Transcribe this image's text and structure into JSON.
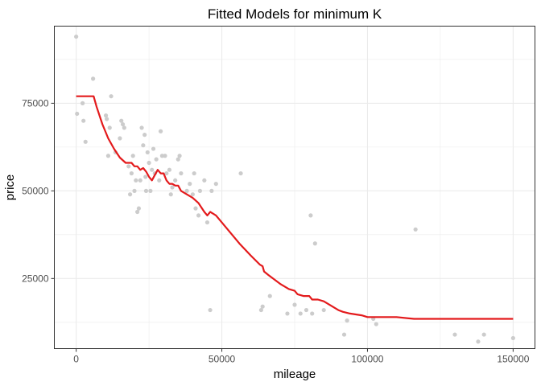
{
  "chart_data": {
    "type": "scatter",
    "title": "Fitted Models for minimum K",
    "xlabel": "mileage",
    "ylabel": "price",
    "xlim": [
      -7500,
      157500
    ],
    "ylim": [
      5000,
      97000
    ],
    "grid": true,
    "x_ticks": [
      0,
      50000,
      100000,
      150000
    ],
    "x_tick_labels": [
      "0",
      "50000",
      "100000",
      "150000"
    ],
    "y_ticks": [
      25000,
      50000,
      75000
    ],
    "y_tick_labels": [
      "25000",
      "50000",
      "75000"
    ],
    "colors": {
      "points": "#cccccc",
      "fit_line": "#e31a1c",
      "grid": "#ebebeb",
      "border": "#333333"
    },
    "points": [
      [
        0,
        94000
      ],
      [
        300,
        72000
      ],
      [
        2200,
        75000
      ],
      [
        2500,
        70000
      ],
      [
        3200,
        64000
      ],
      [
        5800,
        82000
      ],
      [
        10200,
        71500
      ],
      [
        10500,
        70500
      ],
      [
        11000,
        60000
      ],
      [
        11500,
        68000
      ],
      [
        12000,
        77000
      ],
      [
        13500,
        61000
      ],
      [
        15000,
        65000
      ],
      [
        15500,
        70000
      ],
      [
        16000,
        69000
      ],
      [
        16500,
        68000
      ],
      [
        18000,
        57000
      ],
      [
        18500,
        49000
      ],
      [
        19000,
        55000
      ],
      [
        19500,
        60000
      ],
      [
        20000,
        50000
      ],
      [
        20500,
        53000
      ],
      [
        21000,
        44000
      ],
      [
        21500,
        45000
      ],
      [
        22000,
        53000
      ],
      [
        22500,
        68000
      ],
      [
        23000,
        63000
      ],
      [
        23500,
        66000
      ],
      [
        23800,
        54000
      ],
      [
        24000,
        50000
      ],
      [
        24500,
        61000
      ],
      [
        25000,
        58000
      ],
      [
        25500,
        50000
      ],
      [
        26000,
        56000
      ],
      [
        26500,
        62000
      ],
      [
        27000,
        55000
      ],
      [
        27500,
        59000
      ],
      [
        28500,
        53000
      ],
      [
        29000,
        67000
      ],
      [
        29500,
        60000
      ],
      [
        30500,
        60000
      ],
      [
        31000,
        55000
      ],
      [
        32000,
        56000
      ],
      [
        32500,
        49000
      ],
      [
        33000,
        51000
      ],
      [
        34000,
        53000
      ],
      [
        35000,
        59000
      ],
      [
        35500,
        60000
      ],
      [
        36000,
        55000
      ],
      [
        38000,
        50000
      ],
      [
        39000,
        52000
      ],
      [
        40000,
        49000
      ],
      [
        40500,
        55000
      ],
      [
        41000,
        45000
      ],
      [
        42000,
        43000
      ],
      [
        42500,
        50000
      ],
      [
        44000,
        53000
      ],
      [
        45000,
        41000
      ],
      [
        46000,
        16000
      ],
      [
        46500,
        50000
      ],
      [
        48000,
        52000
      ],
      [
        56500,
        55000
      ],
      [
        63500,
        16000
      ],
      [
        64000,
        17000
      ],
      [
        66500,
        20000
      ],
      [
        72500,
        15000
      ],
      [
        75000,
        17500
      ],
      [
        77000,
        15000
      ],
      [
        79000,
        16000
      ],
      [
        80500,
        43000
      ],
      [
        81000,
        15000
      ],
      [
        82000,
        35000
      ],
      [
        85000,
        16000
      ],
      [
        92000,
        9000
      ],
      [
        93000,
        13000
      ],
      [
        102000,
        13500
      ],
      [
        103000,
        12000
      ],
      [
        116500,
        39000
      ],
      [
        130000,
        9000
      ],
      [
        138000,
        7000
      ],
      [
        140000,
        9000
      ],
      [
        150000,
        8000
      ]
    ],
    "fit_line": [
      [
        0,
        77000
      ],
      [
        6000,
        77000
      ],
      [
        7000,
        74000
      ],
      [
        9000,
        69000
      ],
      [
        11000,
        65000
      ],
      [
        13000,
        62000
      ],
      [
        15000,
        59500
      ],
      [
        17000,
        58000
      ],
      [
        19000,
        58000
      ],
      [
        20000,
        57000
      ],
      [
        21000,
        57000
      ],
      [
        22000,
        56000
      ],
      [
        23000,
        56500
      ],
      [
        24000,
        55500
      ],
      [
        25000,
        54000
      ],
      [
        26000,
        53000
      ],
      [
        27000,
        54500
      ],
      [
        28000,
        56000
      ],
      [
        29000,
        55000
      ],
      [
        30000,
        55000
      ],
      [
        31000,
        53000
      ],
      [
        32000,
        52000
      ],
      [
        33000,
        52000
      ],
      [
        34000,
        51500
      ],
      [
        35000,
        51500
      ],
      [
        36000,
        50000
      ],
      [
        38000,
        49000
      ],
      [
        40000,
        48000
      ],
      [
        42000,
        46500
      ],
      [
        44000,
        44000
      ],
      [
        45000,
        43000
      ],
      [
        46000,
        44000
      ],
      [
        47000,
        43500
      ],
      [
        48000,
        43000
      ],
      [
        52000,
        39000
      ],
      [
        56000,
        35000
      ],
      [
        60000,
        31500
      ],
      [
        63000,
        29000
      ],
      [
        64000,
        28500
      ],
      [
        64500,
        27000
      ],
      [
        66000,
        26000
      ],
      [
        70000,
        23500
      ],
      [
        73000,
        22000
      ],
      [
        75000,
        21500
      ],
      [
        76000,
        20500
      ],
      [
        78000,
        20000
      ],
      [
        80000,
        20000
      ],
      [
        81000,
        19000
      ],
      [
        83000,
        19000
      ],
      [
        85000,
        18500
      ],
      [
        88000,
        17000
      ],
      [
        90000,
        16000
      ],
      [
        91500,
        15500
      ],
      [
        94000,
        15000
      ],
      [
        98000,
        14500
      ],
      [
        100000,
        14000
      ],
      [
        110000,
        14000
      ],
      [
        116000,
        13500
      ],
      [
        150000,
        13500
      ]
    ]
  }
}
